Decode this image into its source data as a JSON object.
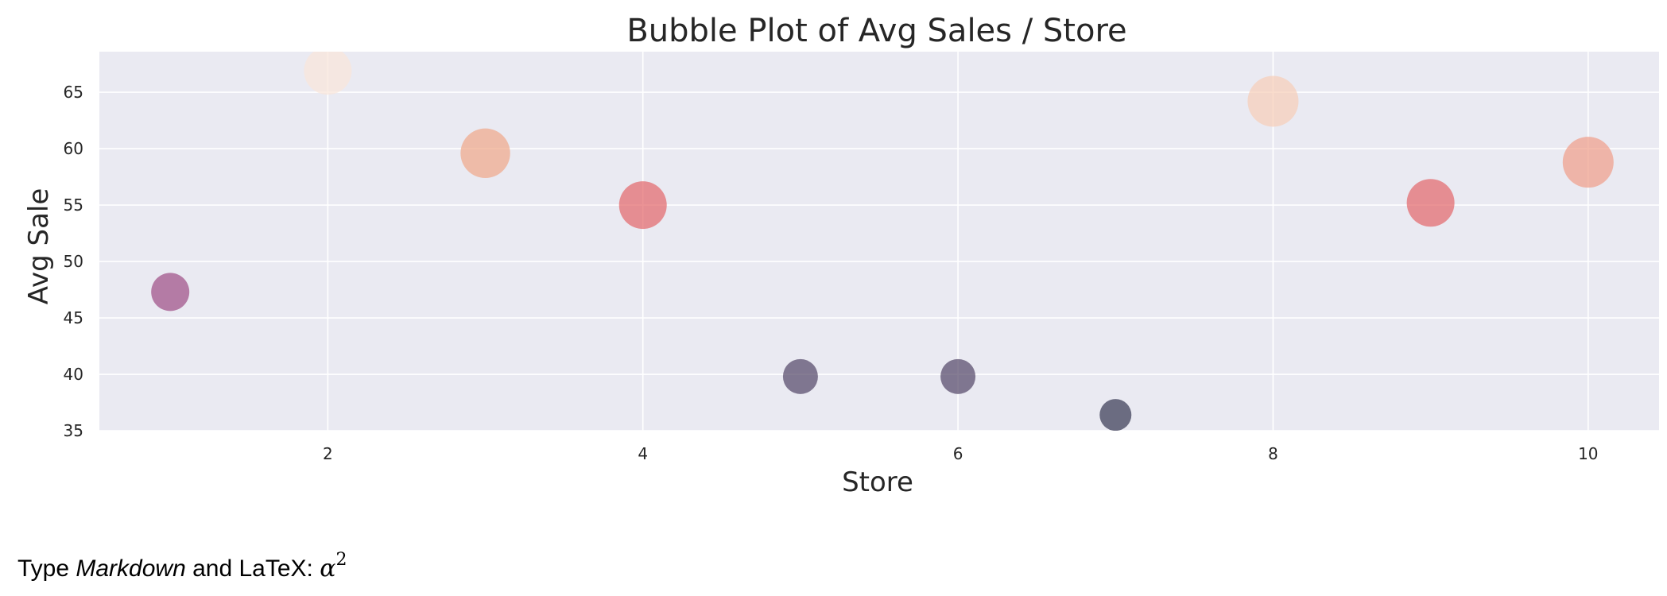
{
  "chart_data": {
    "type": "scatter",
    "title": "Bubble Plot of Avg Sales / Store",
    "xlabel": "Store",
    "ylabel": "Avg Sale",
    "xlim": [
      0.55,
      10.45
    ],
    "ylim": [
      35,
      68.6
    ],
    "xticks": [
      2,
      4,
      6,
      8,
      10
    ],
    "yticks": [
      35,
      40,
      45,
      50,
      55,
      60,
      65
    ],
    "grid": true,
    "background": "#eaeaf2",
    "points": [
      {
        "x": 1,
        "y": 47.3,
        "size": 0.6,
        "color": "#a05087"
      },
      {
        "x": 2,
        "y": 66.9,
        "size": 0.75,
        "color": "#f9e6da"
      },
      {
        "x": 3,
        "y": 59.6,
        "size": 0.78,
        "color": "#f0a98b"
      },
      {
        "x": 4,
        "y": 55.0,
        "size": 0.75,
        "color": "#e36a6c"
      },
      {
        "x": 5,
        "y": 39.8,
        "size": 0.55,
        "color": "#564a69"
      },
      {
        "x": 6,
        "y": 39.8,
        "size": 0.55,
        "color": "#564a69"
      },
      {
        "x": 7,
        "y": 36.4,
        "size": 0.5,
        "color": "#3a3b54"
      },
      {
        "x": 8,
        "y": 64.2,
        "size": 0.8,
        "color": "#f6cfb9"
      },
      {
        "x": 9,
        "y": 55.2,
        "size": 0.75,
        "color": "#e36a6c"
      },
      {
        "x": 10,
        "y": 58.8,
        "size": 0.8,
        "color": "#f0a08a"
      }
    ]
  },
  "markdown": {
    "prefix": "Type ",
    "italic": "Markdown",
    "middle": " and LaTeX: ",
    "math_symbol": "α",
    "math_exponent": "2"
  }
}
